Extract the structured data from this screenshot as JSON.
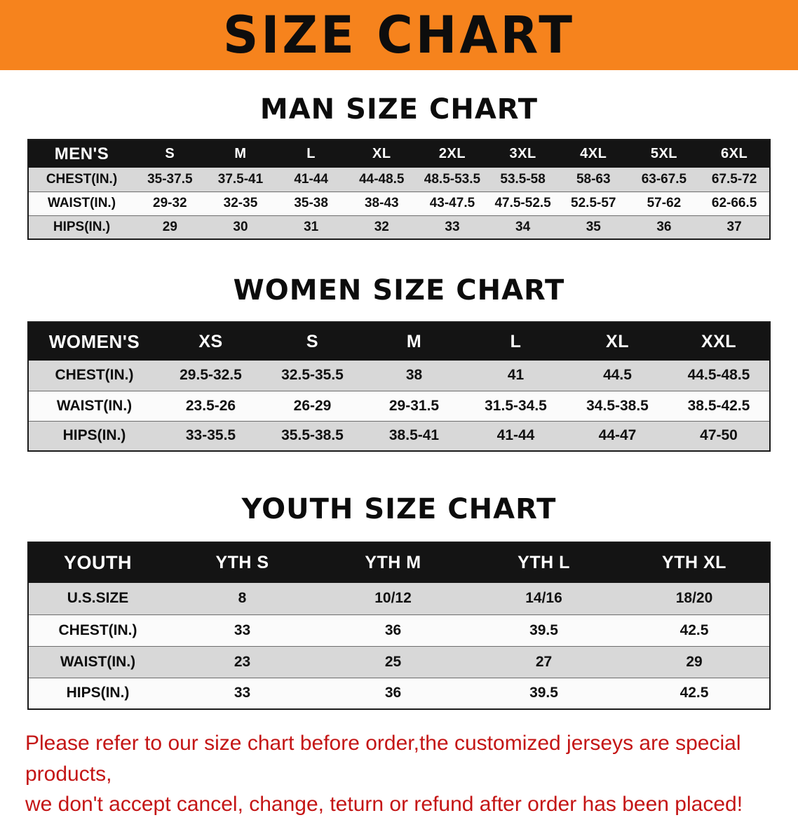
{
  "banner": {
    "title": "SIZE CHART",
    "bg_color": "#f6831d",
    "text_color": "#0d0d0d"
  },
  "sections": [
    {
      "id": "men",
      "title": "MAN SIZE CHART",
      "table": {
        "header": [
          "MEN'S",
          "S",
          "M",
          "L",
          "XL",
          "2XL",
          "3XL",
          "4XL",
          "5XL",
          "6XL"
        ],
        "rows": [
          [
            "CHEST(IN.)",
            "35-37.5",
            "37.5-41",
            "41-44",
            "44-48.5",
            "48.5-53.5",
            "53.5-58",
            "58-63",
            "63-67.5",
            "67.5-72"
          ],
          [
            "WAIST(IN.)",
            "29-32",
            "32-35",
            "35-38",
            "38-43",
            "43-47.5",
            "47.5-52.5",
            "52.5-57",
            "57-62",
            "62-66.5"
          ],
          [
            "HIPS(IN.)",
            "29",
            "30",
            "31",
            "32",
            "33",
            "34",
            "35",
            "36",
            "37"
          ]
        ]
      }
    },
    {
      "id": "women",
      "title": "WOMEN SIZE CHART",
      "table": {
        "header": [
          "WOMEN'S",
          "XS",
          "S",
          "M",
          "L",
          "XL",
          "XXL"
        ],
        "rows": [
          [
            "CHEST(IN.)",
            "29.5-32.5",
            "32.5-35.5",
            "38",
            "41",
            "44.5",
            "44.5-48.5"
          ],
          [
            "WAIST(IN.)",
            "23.5-26",
            "26-29",
            "29-31.5",
            "31.5-34.5",
            "34.5-38.5",
            "38.5-42.5"
          ],
          [
            "HIPS(IN.)",
            "33-35.5",
            "35.5-38.5",
            "38.5-41",
            "41-44",
            "44-47",
            "47-50"
          ]
        ]
      }
    },
    {
      "id": "youth",
      "title": "YOUTH SIZE CHART",
      "table": {
        "header": [
          "YOUTH",
          "YTH S",
          "YTH M",
          "YTH L",
          "YTH XL"
        ],
        "rows": [
          [
            "U.S.SIZE",
            "8",
            "10/12",
            "14/16",
            "18/20"
          ],
          [
            "CHEST(IN.)",
            "33",
            "36",
            "39.5",
            "42.5"
          ],
          [
            "WAIST(IN.)",
            "23",
            "25",
            "27",
            "29"
          ],
          [
            "HIPS(IN.)",
            "33",
            "36",
            "39.5",
            "42.5"
          ]
        ]
      }
    }
  ],
  "footer": {
    "line1": "Please refer to our size chart before order,the customized jerseys are special products,",
    "line2": "we don't accept cancel, change, teturn or refund after order has been placed!",
    "text_color": "#c41515"
  }
}
